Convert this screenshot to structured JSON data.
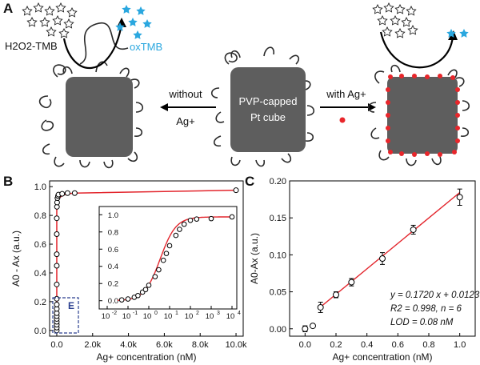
{
  "panel_a": {
    "label": "A",
    "substrate": "H2O2-TMB",
    "product": "oxTMB",
    "center_cube_line1": "PVP-capped",
    "center_cube_line2": "Pt cube",
    "left_arrow_top": "without",
    "left_arrow_bottom": "Ag+",
    "right_arrow_top": "with Ag+",
    "colors": {
      "cube": "#5e5e5e",
      "star": "#2aa7df",
      "dot": "#e8262b",
      "product_text": "#2aa7df"
    },
    "icons": [
      "outline-star-icon",
      "blue-star-icon",
      "red-dot-icon"
    ]
  },
  "panel_b": {
    "label": "B",
    "ylabel": "A0 - Ax (a.u.)",
    "xlabel": "Ag+ concentration (nM)",
    "inset_box_label": "E",
    "xticks": [
      "0.0",
      "2.0k",
      "4.0k",
      "6.0k",
      "8.0k",
      "10.0k"
    ],
    "yticks": [
      "0.0",
      "0.2",
      "0.4",
      "0.6",
      "0.8",
      "1.0"
    ],
    "inset_yticks": [
      "0.0",
      "0.2",
      "0.4",
      "0.6",
      "0.8",
      "1.0"
    ]
  },
  "panel_c": {
    "label": "C",
    "ylabel": "A0-Ax (a.u.)",
    "xlabel": "Ag+ concentration (nM)",
    "xticks": [
      "0.0",
      "0.2",
      "0.4",
      "0.6",
      "0.8",
      "1.0"
    ],
    "yticks": [
      "0.00",
      "0.05",
      "0.10",
      "0.15",
      "0.20"
    ],
    "annotation_eq": "y = 0.1720 x + 0.0123",
    "annotation_r2": "R2 = 0.998, n = 6",
    "annotation_lod": "LOD = 0.08 nM"
  },
  "chart_data": [
    {
      "type": "scatter",
      "panel": "B-main",
      "xlim": [
        -400,
        10400
      ],
      "ylim": [
        -0.04,
        1.04
      ],
      "series": [
        {
          "x": [
            0,
            0,
            0,
            0,
            0,
            0,
            0,
            0,
            0,
            0,
            0,
            0,
            0,
            0,
            0,
            10,
            20,
            40,
            70,
            100,
            300,
            600,
            1000,
            10000
          ],
          "y": [
            0.0,
            0.02,
            0.04,
            0.06,
            0.08,
            0.1,
            0.12,
            0.15,
            0.18,
            0.22,
            0.32,
            0.45,
            0.53,
            0.67,
            0.78,
            0.86,
            0.89,
            0.92,
            0.935,
            0.945,
            0.95,
            0.955,
            0.955,
            0.975
          ]
        }
      ],
      "fit": "sigmoid"
    },
    {
      "type": "scatter",
      "panel": "B-inset",
      "xscale": "log",
      "xlim": [
        0.01,
        10000
      ],
      "ylim": [
        -0.04,
        1.04
      ],
      "xtick_exponents": [
        -2,
        -1,
        0,
        1,
        2,
        3,
        4
      ],
      "series": [
        {
          "x": [
            0.05,
            0.1,
            0.2,
            0.3,
            0.5,
            0.7,
            1,
            2,
            3,
            5,
            7,
            10,
            20,
            30,
            50,
            100,
            200,
            1000,
            10000
          ],
          "y": [
            0.01,
            0.02,
            0.04,
            0.06,
            0.1,
            0.13,
            0.18,
            0.28,
            0.36,
            0.47,
            0.55,
            0.64,
            0.76,
            0.83,
            0.89,
            0.935,
            0.95,
            0.955,
            0.975
          ]
        }
      ],
      "fit": "sigmoid"
    },
    {
      "type": "scatter",
      "panel": "C",
      "xlim": [
        -0.1,
        1.1
      ],
      "ylim": [
        -0.01,
        0.2
      ],
      "series": [
        {
          "x": [
            0,
            0.05,
            0.1,
            0.2,
            0.3,
            0.5,
            0.7,
            1.0
          ],
          "y": [
            0.0,
            0.004,
            0.029,
            0.046,
            0.063,
            0.095,
            0.134,
            0.178
          ],
          "err": [
            0.004,
            0.002,
            0.007,
            0.004,
            0.005,
            0.008,
            0.006,
            0.011
          ]
        }
      ],
      "fit_line": {
        "slope": 0.172,
        "intercept": 0.0123,
        "x": [
          0.1,
          1.0
        ]
      }
    }
  ]
}
